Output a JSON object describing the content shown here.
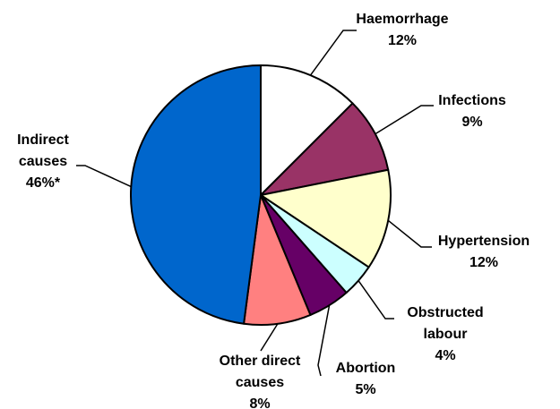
{
  "chart_data": {
    "type": "pie",
    "categories": [
      "Haemorrhage",
      "Infections",
      "Hypertension",
      "Obstructed labour",
      "Abortion",
      "Other direct causes",
      "Indirect causes"
    ],
    "values": [
      12,
      9,
      12,
      4,
      5,
      8,
      46
    ],
    "value_labels": [
      "12%",
      "9%",
      "12%",
      "4%",
      "5%",
      "8%",
      "46%*"
    ],
    "colors": [
      "#ffffff",
      "#993366",
      "#ffffcc",
      "#ccffff",
      "#660066",
      "#ff8080",
      "#0066cc"
    ]
  }
}
